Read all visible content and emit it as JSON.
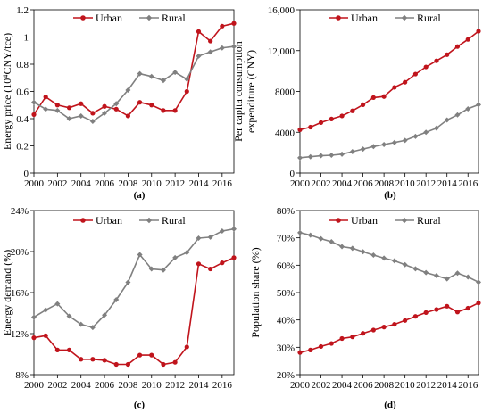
{
  "colors": {
    "urban": "#c0141c",
    "rural": "#808080"
  },
  "chart_data": [
    {
      "type": "line",
      "caption": "(a)",
      "ylabel": "Energy price (10⁴CNY/tce)",
      "x": [
        2000,
        2001,
        2002,
        2003,
        2004,
        2005,
        2006,
        2007,
        2008,
        2009,
        2010,
        2011,
        2012,
        2013,
        2014,
        2015,
        2016,
        2017
      ],
      "xticks": [
        2000,
        2002,
        2004,
        2006,
        2008,
        2010,
        2012,
        2014,
        2016
      ],
      "xtick_labels": [
        "2000",
        "2002",
        "2004",
        "2006",
        "2008",
        "2010",
        "2012",
        "2014",
        "2016"
      ],
      "ylim": [
        0,
        1.2
      ],
      "yticks": [
        0,
        0.2,
        0.4,
        0.6,
        0.8,
        1.0,
        1.2
      ],
      "ytick_labels": [
        "0",
        "0.2",
        "0.4",
        "0.6",
        "0.8",
        "1",
        "1.2"
      ],
      "legend": "top-center",
      "series": [
        {
          "name": "Urban",
          "color": "urban",
          "marker": "circle",
          "values": [
            0.43,
            0.56,
            0.5,
            0.48,
            0.51,
            0.44,
            0.49,
            0.47,
            0.42,
            0.52,
            0.5,
            0.46,
            0.46,
            0.6,
            1.04,
            0.97,
            1.08,
            1.1
          ]
        },
        {
          "name": "Rural",
          "color": "rural",
          "marker": "diamond",
          "values": [
            0.52,
            0.47,
            0.46,
            0.4,
            0.42,
            0.38,
            0.44,
            0.51,
            0.61,
            0.73,
            0.71,
            0.68,
            0.74,
            0.69,
            0.86,
            0.89,
            0.92,
            0.93
          ]
        }
      ]
    },
    {
      "type": "line",
      "caption": "(b)",
      "ylabel": "Per capita consumption expenditure (CNY)",
      "ylabel_lines": [
        "Per capita consumption",
        "expenditure (CNY)"
      ],
      "x": [
        2000,
        2001,
        2002,
        2003,
        2004,
        2005,
        2006,
        2007,
        2008,
        2009,
        2010,
        2011,
        2012,
        2013,
        2014,
        2015,
        2016,
        2017
      ],
      "xticks": [
        2000,
        2002,
        2004,
        2006,
        2008,
        2010,
        2012,
        2014,
        2016
      ],
      "xtick_labels": [
        "2000",
        "2002",
        "2004",
        "2006",
        "2008",
        "2010",
        "2012",
        "2014",
        "2016"
      ],
      "ylim": [
        0,
        16000
      ],
      "yticks": [
        0,
        4000,
        8000,
        12000,
        16000
      ],
      "ytick_labels": [
        "0",
        "4000",
        "8000",
        "12,000",
        "16,000"
      ],
      "legend": "top-center",
      "series": [
        {
          "name": "Urban",
          "color": "urban",
          "marker": "circle",
          "values": [
            4250,
            4500,
            4950,
            5300,
            5600,
            6100,
            6700,
            7400,
            7500,
            8400,
            8900,
            9700,
            10400,
            11000,
            11600,
            12400,
            13100,
            13900
          ]
        },
        {
          "name": "Rural",
          "color": "rural",
          "marker": "diamond",
          "values": [
            1500,
            1600,
            1700,
            1750,
            1850,
            2100,
            2350,
            2600,
            2800,
            3000,
            3200,
            3600,
            4000,
            4400,
            5200,
            5700,
            6300,
            6700
          ]
        }
      ]
    },
    {
      "type": "line",
      "caption": "(c)",
      "ylabel": "Energy demand (%)",
      "x": [
        2000,
        2001,
        2002,
        2003,
        2004,
        2005,
        2006,
        2007,
        2008,
        2009,
        2010,
        2011,
        2012,
        2013,
        2014,
        2015,
        2016,
        2017
      ],
      "xticks": [
        2000,
        2002,
        2004,
        2006,
        2008,
        2010,
        2012,
        2014,
        2016
      ],
      "xtick_labels": [
        "2000",
        "2002",
        "2004",
        "2006",
        "2008",
        "2010",
        "2012",
        "2014",
        "2016"
      ],
      "ylim": [
        8,
        24
      ],
      "yticks": [
        8,
        12,
        16,
        20,
        24
      ],
      "ytick_labels": [
        "8%",
        "12%",
        "16%",
        "20%",
        "24%"
      ],
      "legend": "top-center",
      "series": [
        {
          "name": "Urban",
          "color": "urban",
          "marker": "circle",
          "values": [
            11.6,
            11.8,
            10.4,
            10.4,
            9.5,
            9.5,
            9.4,
            9.0,
            9.0,
            9.9,
            9.9,
            9.0,
            9.2,
            10.7,
            18.8,
            18.3,
            18.9,
            19.4
          ]
        },
        {
          "name": "Rural",
          "color": "rural",
          "marker": "diamond",
          "values": [
            13.6,
            14.3,
            14.9,
            13.7,
            12.9,
            12.6,
            13.8,
            15.3,
            17.0,
            19.7,
            18.3,
            18.2,
            19.4,
            19.9,
            21.3,
            21.4,
            22.0,
            22.2
          ]
        }
      ]
    },
    {
      "type": "line",
      "caption": "(d)",
      "ylabel": "Population share (%)",
      "x": [
        2000,
        2001,
        2002,
        2003,
        2004,
        2005,
        2006,
        2007,
        2008,
        2009,
        2010,
        2011,
        2012,
        2013,
        2014,
        2015,
        2016,
        2017
      ],
      "xticks": [
        2000,
        2002,
        2004,
        2006,
        2008,
        2010,
        2012,
        2014,
        2016
      ],
      "xtick_labels": [
        "2000",
        "2002",
        "2004",
        "2006",
        "2008",
        "2010",
        "2012",
        "2014",
        "2016"
      ],
      "ylim": [
        20,
        80
      ],
      "yticks": [
        20,
        30,
        40,
        50,
        60,
        70,
        80
      ],
      "ytick_labels": [
        "20%",
        "30%",
        "40%",
        "50%",
        "60%",
        "70%",
        "80%"
      ],
      "legend": "top-center",
      "series": [
        {
          "name": "Urban",
          "color": "urban",
          "marker": "circle",
          "values": [
            28.1,
            29.0,
            30.3,
            31.4,
            33.2,
            33.8,
            35.1,
            36.3,
            37.4,
            38.4,
            39.8,
            41.3,
            42.7,
            43.8,
            45.0,
            42.9,
            44.3,
            46.2
          ]
        },
        {
          "name": "Rural",
          "color": "rural",
          "marker": "diamond",
          "values": [
            71.9,
            71.0,
            69.7,
            68.6,
            66.8,
            66.2,
            64.9,
            63.7,
            62.6,
            61.6,
            60.2,
            58.7,
            57.3,
            56.2,
            55.0,
            57.1,
            55.7,
            53.8
          ]
        }
      ]
    }
  ]
}
